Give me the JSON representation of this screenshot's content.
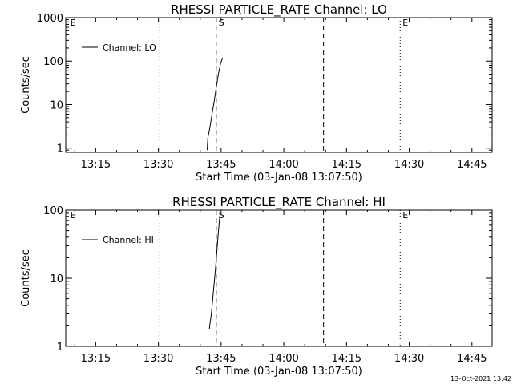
{
  "chart_data": [
    {
      "type": "line",
      "title": "RHESSI PARTICLE_RATE Channel: LO",
      "xlabel": "Start Time (03-Jan-08 13:07:50)",
      "ylabel": "Counts/sec",
      "y_scale": "log",
      "ylim": [
        0.8,
        1000
      ],
      "yticks": [
        1,
        10,
        100,
        1000
      ],
      "ytick_labels": [
        "1",
        "10",
        "100",
        "1000"
      ],
      "xlim": [
        "13:07:50",
        "14:49:50"
      ],
      "xticks": [
        "13:15",
        "13:30",
        "13:45",
        "14:00",
        "14:15",
        "14:30",
        "14:45"
      ],
      "legend": "upper-left",
      "series": [
        {
          "name": "Channel: LO",
          "x": [
            "13:41:40",
            "13:41:50",
            "13:42:20",
            "13:42:50",
            "13:43:20",
            "13:43:50",
            "13:44:20",
            "13:44:50",
            "13:45:20"
          ],
          "y": [
            0.9,
            1.7,
            3.0,
            6.0,
            12.0,
            25.0,
            50.0,
            85.0,
            120.0
          ]
        }
      ],
      "vlines_dotted": [
        "13:30:20",
        "14:27:50",
        "14:50:20"
      ],
      "vlines_dashed": [
        "13:43:50",
        "14:09:30"
      ],
      "markers": [
        {
          "label": "E",
          "x": "13:08:20"
        },
        {
          "label": "S",
          "x": "13:43:50"
        },
        {
          "label": "E",
          "x": "14:27:50"
        }
      ]
    },
    {
      "type": "line",
      "title": "RHESSI PARTICLE_RATE Channel: HI",
      "xlabel": "Start Time (03-Jan-08 13:07:50)",
      "ylabel": "Counts/sec",
      "y_scale": "log",
      "ylim": [
        1,
        100
      ],
      "yticks": [
        1,
        10,
        100
      ],
      "ytick_labels": [
        "1",
        "10",
        "100"
      ],
      "xlim": [
        "13:07:50",
        "14:49:50"
      ],
      "xticks": [
        "13:15",
        "13:30",
        "13:45",
        "14:00",
        "14:15",
        "14:30",
        "14:45"
      ],
      "legend": "upper-left",
      "series": [
        {
          "name": "Channel: HI",
          "x": [
            "13:42:10",
            "13:42:40",
            "13:43:10",
            "13:43:40",
            "13:44:10",
            "13:44:40"
          ],
          "y": [
            1.8,
            3.0,
            6.5,
            14.0,
            35.0,
            80.0
          ]
        }
      ],
      "vlines_dotted": [
        "13:30:20",
        "14:27:50",
        "14:50:20"
      ],
      "vlines_dashed": [
        "13:43:50",
        "14:09:30"
      ],
      "markers": [
        {
          "label": "E",
          "x": "13:08:20"
        },
        {
          "label": "S",
          "x": "13:43:50"
        },
        {
          "label": "E",
          "x": "14:27:50"
        }
      ]
    }
  ],
  "footer": {
    "timestamp": "13-Oct-2021 13:42"
  }
}
